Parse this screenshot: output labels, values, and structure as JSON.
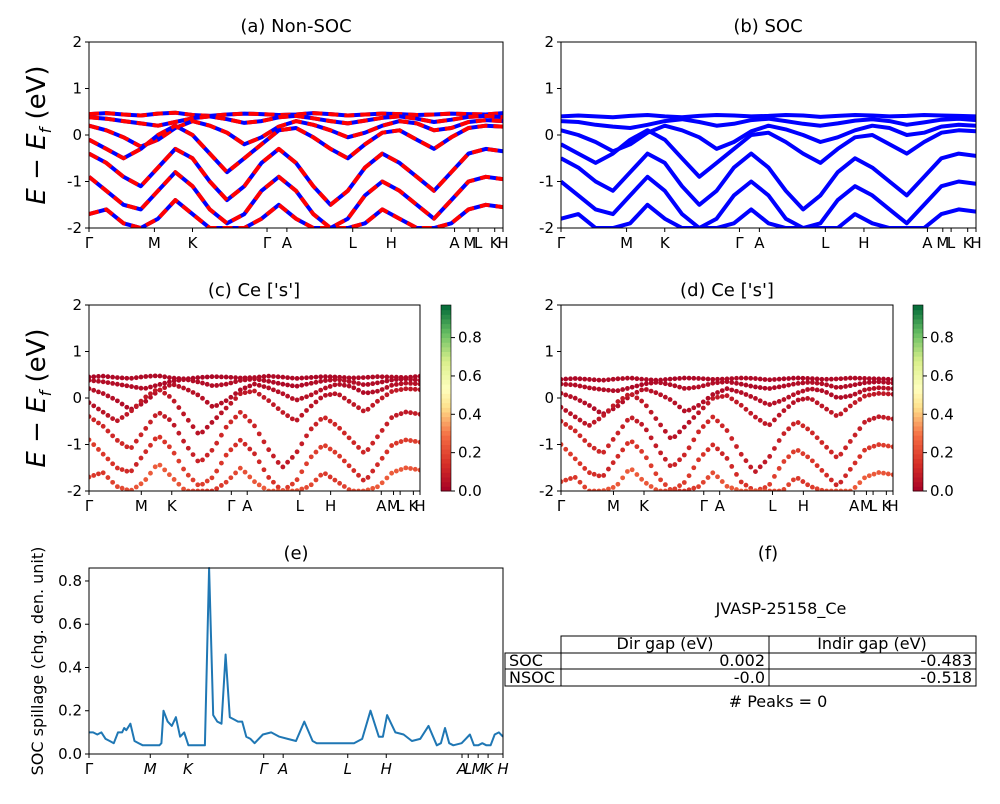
{
  "figure": {
    "ylabel_main": "E − E",
    "ylabel_sub": "f",
    "ylabel_unit": " (eV)"
  },
  "chart_data": [
    {
      "id": "a",
      "type": "line",
      "title": "(a) Non-SOC",
      "ylim": [
        -2,
        2
      ],
      "yticks": [
        -2,
        -1,
        0,
        1,
        2
      ],
      "xtick_labels": [
        "Γ",
        "M",
        "K",
        "Γ",
        "A",
        "L",
        "H",
        "A",
        "M",
        "L",
        "K",
        "H"
      ],
      "kpath": [
        0,
        0.158,
        0.25,
        0.43,
        0.478,
        0.637,
        0.73,
        0.883,
        0.92,
        0.94,
        0.98,
        1.0
      ],
      "colors": [
        "#0000ff",
        "#ff0000"
      ],
      "bands": [
        [
          0.45,
          0.47,
          0.44,
          0.42,
          0.46,
          0.48,
          0.43,
          0.41,
          0.44,
          0.46,
          0.45,
          0.43,
          0.44,
          0.47,
          0.45,
          0.42,
          0.44,
          0.46,
          0.45,
          0.43,
          0.44,
          0.46,
          0.45,
          0.44,
          0.47
        ],
        [
          0.38,
          0.35,
          0.3,
          0.25,
          0.2,
          0.28,
          0.36,
          0.4,
          0.34,
          0.26,
          0.3,
          0.38,
          0.41,
          0.36,
          0.3,
          0.25,
          0.31,
          0.37,
          0.4,
          0.35,
          0.28,
          0.33,
          0.39,
          0.41,
          0.38
        ],
        [
          0.2,
          0.1,
          -0.05,
          -0.25,
          -0.1,
          0.15,
          0.3,
          0.2,
          0.05,
          -0.2,
          -0.05,
          0.18,
          0.3,
          0.22,
          0.1,
          -0.05,
          0.05,
          0.2,
          0.3,
          0.25,
          0.1,
          0.15,
          0.28,
          0.32,
          0.3
        ],
        [
          -0.1,
          -0.3,
          -0.5,
          -0.3,
          0.0,
          0.2,
          0.0,
          -0.4,
          -0.8,
          -0.5,
          -0.2,
          0.1,
          0.15,
          -0.05,
          -0.3,
          -0.5,
          -0.2,
          0.05,
          0.1,
          -0.1,
          -0.3,
          -0.05,
          0.15,
          0.2,
          0.18
        ],
        [
          -0.4,
          -0.6,
          -0.9,
          -1.1,
          -0.7,
          -0.3,
          -0.5,
          -1.0,
          -1.4,
          -1.1,
          -0.6,
          -0.3,
          -0.6,
          -1.1,
          -1.5,
          -1.2,
          -0.7,
          -0.4,
          -0.6,
          -0.9,
          -1.2,
          -0.8,
          -0.4,
          -0.3,
          -0.35
        ],
        [
          -0.9,
          -1.2,
          -1.5,
          -1.6,
          -1.2,
          -0.8,
          -1.1,
          -1.6,
          -1.9,
          -1.7,
          -1.2,
          -0.9,
          -1.2,
          -1.7,
          -2.0,
          -1.8,
          -1.3,
          -1.0,
          -1.2,
          -1.5,
          -1.8,
          -1.4,
          -1.0,
          -0.9,
          -0.95
        ],
        [
          -1.7,
          -1.6,
          -1.9,
          -2.0,
          -1.8,
          -1.4,
          -1.7,
          -2.0,
          -2.0,
          -2.0,
          -1.8,
          -1.5,
          -1.8,
          -2.0,
          -2.0,
          -2.0,
          -1.9,
          -1.6,
          -1.8,
          -2.0,
          -2.0,
          -1.9,
          -1.6,
          -1.5,
          -1.55
        ]
      ]
    },
    {
      "id": "b",
      "type": "line",
      "title": "(b) SOC",
      "ylim": [
        -2,
        2
      ],
      "yticks": [
        -2,
        -1,
        0,
        1,
        2
      ],
      "xtick_labels": [
        "Γ",
        "M",
        "K",
        "Γ",
        "A",
        "L",
        "H",
        "A",
        "M",
        "L",
        "K",
        "H"
      ],
      "kpath": [
        0,
        0.158,
        0.25,
        0.43,
        0.478,
        0.637,
        0.73,
        0.883,
        0.92,
        0.94,
        0.98,
        1.0
      ],
      "colors": [
        "#0000ff"
      ],
      "bands": [
        [
          0.4,
          0.42,
          0.4,
          0.38,
          0.41,
          0.43,
          0.4,
          0.38,
          0.41,
          0.43,
          0.42,
          0.4,
          0.41,
          0.43,
          0.42,
          0.39,
          0.41,
          0.43,
          0.42,
          0.4,
          0.41,
          0.43,
          0.42,
          0.41,
          0.4
        ],
        [
          0.3,
          0.28,
          0.22,
          0.18,
          0.15,
          0.22,
          0.3,
          0.34,
          0.28,
          0.2,
          0.24,
          0.32,
          0.35,
          0.3,
          0.24,
          0.2,
          0.25,
          0.31,
          0.34,
          0.3,
          0.22,
          0.27,
          0.33,
          0.35,
          0.32
        ],
        [
          0.1,
          0.0,
          -0.15,
          -0.35,
          -0.2,
          0.05,
          0.2,
          0.1,
          -0.05,
          -0.3,
          -0.15,
          0.08,
          0.2,
          0.12,
          0.0,
          -0.15,
          -0.05,
          0.1,
          0.2,
          0.15,
          0.0,
          0.05,
          0.18,
          0.22,
          0.2
        ],
        [
          -0.2,
          -0.4,
          -0.6,
          -0.4,
          -0.1,
          0.1,
          -0.1,
          -0.5,
          -0.9,
          -0.6,
          -0.3,
          0.0,
          0.05,
          -0.15,
          -0.4,
          -0.6,
          -0.3,
          -0.05,
          0.0,
          -0.2,
          -0.4,
          -0.15,
          0.05,
          0.1,
          0.08
        ],
        [
          -0.5,
          -0.7,
          -1.0,
          -1.2,
          -0.8,
          -0.4,
          -0.6,
          -1.1,
          -1.5,
          -1.2,
          -0.7,
          -0.4,
          -0.7,
          -1.2,
          -1.6,
          -1.3,
          -0.8,
          -0.5,
          -0.7,
          -1.0,
          -1.3,
          -0.9,
          -0.5,
          -0.4,
          -0.45
        ],
        [
          -1.0,
          -1.3,
          -1.6,
          -1.7,
          -1.3,
          -0.9,
          -1.2,
          -1.7,
          -2.0,
          -1.8,
          -1.3,
          -1.0,
          -1.3,
          -1.8,
          -2.0,
          -1.9,
          -1.4,
          -1.1,
          -1.3,
          -1.6,
          -1.9,
          -1.5,
          -1.1,
          -1.0,
          -1.05
        ],
        [
          -1.8,
          -1.7,
          -2.0,
          -2.0,
          -1.9,
          -1.5,
          -1.8,
          -2.0,
          -2.0,
          -2.0,
          -1.9,
          -1.6,
          -1.9,
          -2.0,
          -2.0,
          -2.0,
          -2.0,
          -1.7,
          -1.9,
          -2.0,
          -2.0,
          -2.0,
          -1.7,
          -1.6,
          -1.65
        ]
      ]
    },
    {
      "id": "c",
      "type": "scatter",
      "title": "(c)  Ce ['s']",
      "ylim": [
        -2,
        2
      ],
      "yticks": [
        -2,
        -1,
        0,
        1,
        2
      ],
      "xtick_labels": [
        "Γ",
        "M",
        "K",
        "Γ",
        "A",
        "L",
        "H",
        "A",
        "M",
        "L",
        "K",
        "H"
      ],
      "kpath": [
        0,
        0.158,
        0.25,
        0.43,
        0.478,
        0.637,
        0.73,
        0.883,
        0.92,
        0.94,
        0.98,
        1.0
      ],
      "colorbar_ticks": [
        0.0,
        0.2,
        0.4,
        0.6,
        0.8
      ],
      "colorbar_range": [
        0,
        0.97
      ],
      "bands": [
        [
          0.45,
          0.47,
          0.44,
          0.42,
          0.46,
          0.48,
          0.43,
          0.41,
          0.44,
          0.46,
          0.45,
          0.43,
          0.44,
          0.47,
          0.45,
          0.42,
          0.44,
          0.46,
          0.45,
          0.43,
          0.44,
          0.46,
          0.45,
          0.44,
          0.47
        ],
        [
          0.38,
          0.35,
          0.3,
          0.25,
          0.2,
          0.28,
          0.36,
          0.4,
          0.34,
          0.26,
          0.3,
          0.38,
          0.41,
          0.36,
          0.3,
          0.25,
          0.31,
          0.37,
          0.4,
          0.35,
          0.28,
          0.33,
          0.39,
          0.41,
          0.38
        ],
        [
          0.2,
          0.1,
          -0.05,
          -0.25,
          -0.1,
          0.15,
          0.3,
          0.2,
          0.05,
          -0.2,
          -0.05,
          0.18,
          0.3,
          0.22,
          0.1,
          -0.05,
          0.05,
          0.2,
          0.3,
          0.25,
          0.1,
          0.15,
          0.28,
          0.32,
          0.3
        ],
        [
          -0.1,
          -0.3,
          -0.5,
          -0.3,
          0.0,
          0.2,
          0.0,
          -0.4,
          -0.8,
          -0.5,
          -0.2,
          0.1,
          0.15,
          -0.05,
          -0.3,
          -0.5,
          -0.2,
          0.05,
          0.1,
          -0.1,
          -0.3,
          -0.05,
          0.15,
          0.2,
          0.18
        ],
        [
          -0.4,
          -0.6,
          -0.9,
          -1.1,
          -0.7,
          -0.3,
          -0.5,
          -1.0,
          -1.4,
          -1.1,
          -0.6,
          -0.3,
          -0.6,
          -1.1,
          -1.5,
          -1.2,
          -0.7,
          -0.4,
          -0.6,
          -0.9,
          -1.2,
          -0.8,
          -0.4,
          -0.3,
          -0.35
        ],
        [
          -0.9,
          -1.2,
          -1.5,
          -1.6,
          -1.2,
          -0.8,
          -1.1,
          -1.6,
          -1.9,
          -1.7,
          -1.2,
          -0.9,
          -1.2,
          -1.7,
          -2.0,
          -1.8,
          -1.3,
          -1.0,
          -1.2,
          -1.5,
          -1.8,
          -1.4,
          -1.0,
          -0.9,
          -0.95
        ],
        [
          -1.7,
          -1.6,
          -1.9,
          -2.0,
          -1.8,
          -1.4,
          -1.7,
          -2.0,
          -2.0,
          -2.0,
          -1.8,
          -1.5,
          -1.8,
          -2.0,
          -2.0,
          -2.0,
          -1.9,
          -1.6,
          -1.8,
          -2.0,
          -2.0,
          -1.9,
          -1.6,
          -1.5,
          -1.55
        ]
      ],
      "weights": [
        0.03,
        0.04,
        0.05,
        0.08,
        0.12,
        0.18,
        0.25
      ]
    },
    {
      "id": "d",
      "type": "scatter",
      "title": "(d) Ce ['s']",
      "ylim": [
        -2,
        2
      ],
      "yticks": [
        -2,
        -1,
        0,
        1,
        2
      ],
      "xtick_labels": [
        "Γ",
        "M",
        "K",
        "Γ",
        "A",
        "L",
        "H",
        "A",
        "M",
        "L",
        "K",
        "H"
      ],
      "kpath": [
        0,
        0.158,
        0.25,
        0.43,
        0.478,
        0.637,
        0.73,
        0.883,
        0.92,
        0.94,
        0.98,
        1.0
      ],
      "colorbar_ticks": [
        0.0,
        0.2,
        0.4,
        0.6,
        0.8
      ],
      "colorbar_range": [
        0,
        0.97
      ],
      "bands": [
        [
          0.4,
          0.42,
          0.4,
          0.38,
          0.41,
          0.43,
          0.4,
          0.38,
          0.41,
          0.43,
          0.42,
          0.4,
          0.41,
          0.43,
          0.42,
          0.39,
          0.41,
          0.43,
          0.42,
          0.4,
          0.41,
          0.43,
          0.42,
          0.41,
          0.4
        ],
        [
          0.3,
          0.28,
          0.22,
          0.18,
          0.15,
          0.22,
          0.3,
          0.34,
          0.28,
          0.2,
          0.24,
          0.32,
          0.35,
          0.3,
          0.24,
          0.2,
          0.25,
          0.31,
          0.34,
          0.3,
          0.22,
          0.27,
          0.33,
          0.35,
          0.32
        ],
        [
          0.1,
          0.0,
          -0.15,
          -0.35,
          -0.2,
          0.05,
          0.2,
          0.1,
          -0.05,
          -0.3,
          -0.15,
          0.08,
          0.2,
          0.12,
          0.0,
          -0.15,
          -0.05,
          0.1,
          0.2,
          0.15,
          0.0,
          0.05,
          0.18,
          0.22,
          0.2
        ],
        [
          -0.2,
          -0.4,
          -0.6,
          -0.4,
          -0.1,
          0.1,
          -0.1,
          -0.5,
          -0.9,
          -0.6,
          -0.3,
          0.0,
          0.05,
          -0.15,
          -0.4,
          -0.6,
          -0.3,
          -0.05,
          0.0,
          -0.2,
          -0.4,
          -0.15,
          0.05,
          0.1,
          0.08
        ],
        [
          -0.5,
          -0.7,
          -1.0,
          -1.2,
          -0.8,
          -0.4,
          -0.6,
          -1.1,
          -1.5,
          -1.2,
          -0.7,
          -0.4,
          -0.7,
          -1.2,
          -1.6,
          -1.3,
          -0.8,
          -0.5,
          -0.7,
          -1.0,
          -1.3,
          -0.9,
          -0.5,
          -0.4,
          -0.45
        ],
        [
          -1.0,
          -1.3,
          -1.6,
          -1.7,
          -1.3,
          -0.9,
          -1.2,
          -1.7,
          -2.0,
          -1.8,
          -1.3,
          -1.0,
          -1.3,
          -1.8,
          -2.0,
          -1.9,
          -1.4,
          -1.1,
          -1.3,
          -1.6,
          -1.9,
          -1.5,
          -1.1,
          -1.0,
          -1.05
        ],
        [
          -1.8,
          -1.7,
          -2.0,
          -2.0,
          -1.9,
          -1.5,
          -1.8,
          -2.0,
          -2.0,
          -2.0,
          -1.9,
          -1.6,
          -1.9,
          -2.0,
          -2.0,
          -2.0,
          -2.0,
          -1.7,
          -1.9,
          -2.0,
          -2.0,
          -2.0,
          -1.7,
          -1.6,
          -1.65
        ]
      ],
      "weights": [
        0.03,
        0.04,
        0.05,
        0.08,
        0.12,
        0.18,
        0.25
      ]
    },
    {
      "id": "e",
      "type": "line",
      "title": "(e)",
      "ylabel": "SOC spillage (chg. den. unit)",
      "ylim": [
        0,
        0.86
      ],
      "yticks": [
        0.0,
        0.2,
        0.4,
        0.6,
        0.8
      ],
      "xtick_labels": [
        "Γ",
        "M",
        "K",
        "Γ",
        "A",
        "L",
        "H",
        "A",
        "L",
        "M",
        "K",
        "H"
      ],
      "kpath": [
        0,
        0.148,
        0.239,
        0.422,
        0.469,
        0.625,
        0.718,
        0.901,
        0.916,
        0.94,
        0.964,
        1.0
      ],
      "color": "#1f77b4",
      "x": [
        0,
        0.01,
        0.02,
        0.03,
        0.04,
        0.05,
        0.06,
        0.07,
        0.08,
        0.085,
        0.09,
        0.1,
        0.11,
        0.12,
        0.13,
        0.14,
        0.15,
        0.16,
        0.17,
        0.175,
        0.18,
        0.19,
        0.2,
        0.21,
        0.22,
        0.23,
        0.24,
        0.245,
        0.25,
        0.26,
        0.27,
        0.28,
        0.29,
        0.3,
        0.31,
        0.32,
        0.33,
        0.34,
        0.35,
        0.36,
        0.37,
        0.38,
        0.39,
        0.4,
        0.42,
        0.44,
        0.46,
        0.48,
        0.5,
        0.52,
        0.54,
        0.55,
        0.56,
        0.58,
        0.6,
        0.62,
        0.64,
        0.66,
        0.68,
        0.7,
        0.71,
        0.72,
        0.73,
        0.74,
        0.76,
        0.78,
        0.8,
        0.82,
        0.84,
        0.85,
        0.86,
        0.87,
        0.88,
        0.9,
        0.91,
        0.92,
        0.93,
        0.94,
        0.95,
        0.96,
        0.97,
        0.98,
        0.99,
        1.0
      ],
      "y": [
        0.1,
        0.1,
        0.09,
        0.1,
        0.07,
        0.06,
        0.05,
        0.1,
        0.1,
        0.12,
        0.11,
        0.14,
        0.06,
        0.05,
        0.04,
        0.04,
        0.04,
        0.04,
        0.04,
        0.05,
        0.2,
        0.15,
        0.13,
        0.17,
        0.08,
        0.1,
        0.04,
        0.04,
        0.04,
        0.04,
        0.04,
        0.04,
        0.86,
        0.18,
        0.15,
        0.14,
        0.46,
        0.17,
        0.16,
        0.15,
        0.15,
        0.08,
        0.07,
        0.05,
        0.09,
        0.1,
        0.08,
        0.07,
        0.06,
        0.15,
        0.06,
        0.05,
        0.05,
        0.05,
        0.05,
        0.05,
        0.05,
        0.07,
        0.2,
        0.08,
        0.08,
        0.18,
        0.14,
        0.1,
        0.09,
        0.06,
        0.07,
        0.13,
        0.04,
        0.05,
        0.12,
        0.05,
        0.04,
        0.05,
        0.07,
        0.09,
        0.04,
        0.04,
        0.05,
        0.04,
        0.04,
        0.09,
        0.1,
        0.08
      ]
    }
  ],
  "panel_f": {
    "title": "(f)",
    "material": "JVASP-25158_Ce",
    "table": {
      "headers": [
        "",
        "Dir gap (eV)",
        "Indir gap (eV)"
      ],
      "rows": [
        [
          "SOC",
          "0.002",
          "-0.483"
        ],
        [
          "NSOC",
          "-0.0",
          "-0.518"
        ]
      ]
    },
    "peaks": "# Peaks = 0"
  }
}
